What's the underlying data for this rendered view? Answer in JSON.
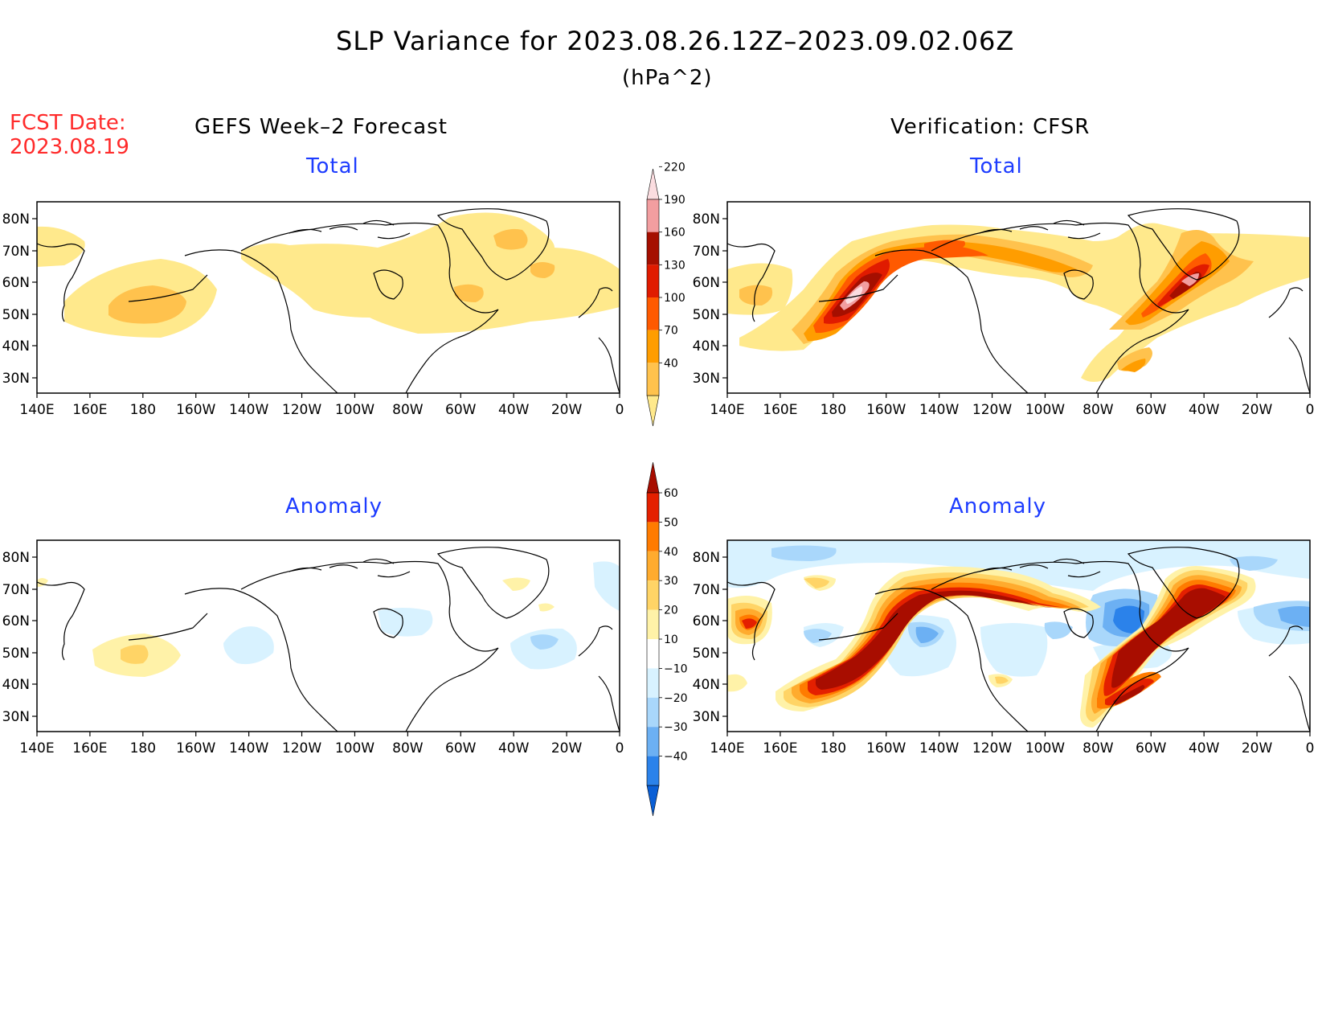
{
  "title": "SLP Variance for 2023.08.26.12Z–2023.09.02.06Z",
  "units": "(hPa^2)",
  "fcst_label": "FCST Date:",
  "fcst_date": "2023.08.19",
  "left_heading": "GEFS Week–2 Forecast",
  "right_heading": "Verification: CFSR",
  "panel_titles": {
    "total": "Total",
    "anomaly": "Anomaly"
  },
  "lat_labels": [
    "80N",
    "70N",
    "60N",
    "50N",
    "40N",
    "30N"
  ],
  "lon_labels": [
    "140E",
    "160E",
    "180",
    "160W",
    "140W",
    "120W",
    "100W",
    "80W",
    "60W",
    "40W",
    "20W",
    "0"
  ],
  "colorbars": {
    "total": {
      "levels": [
        "40",
        "70",
        "100",
        "130",
        "160",
        "190",
        "220"
      ],
      "colors": [
        "#ffe98c",
        "#ffc24d",
        "#ff9d00",
        "#ff5a00",
        "#e01b00",
        "#a50f00",
        "#f29ea0",
        "#fbdde0"
      ]
    },
    "anomaly": {
      "levels": [
        "−40",
        "−30",
        "−20",
        "−10",
        "10",
        "20",
        "30",
        "40",
        "50",
        "60"
      ],
      "colors": [
        "#0a5fd6",
        "#2b82ea",
        "#6cb0f3",
        "#a9d7fb",
        "#d8f2ff",
        "#ffffff",
        "#fff2a8",
        "#ffd466",
        "#ffab2e",
        "#ff7b00",
        "#e42000",
        "#a80d00"
      ]
    }
  }
}
